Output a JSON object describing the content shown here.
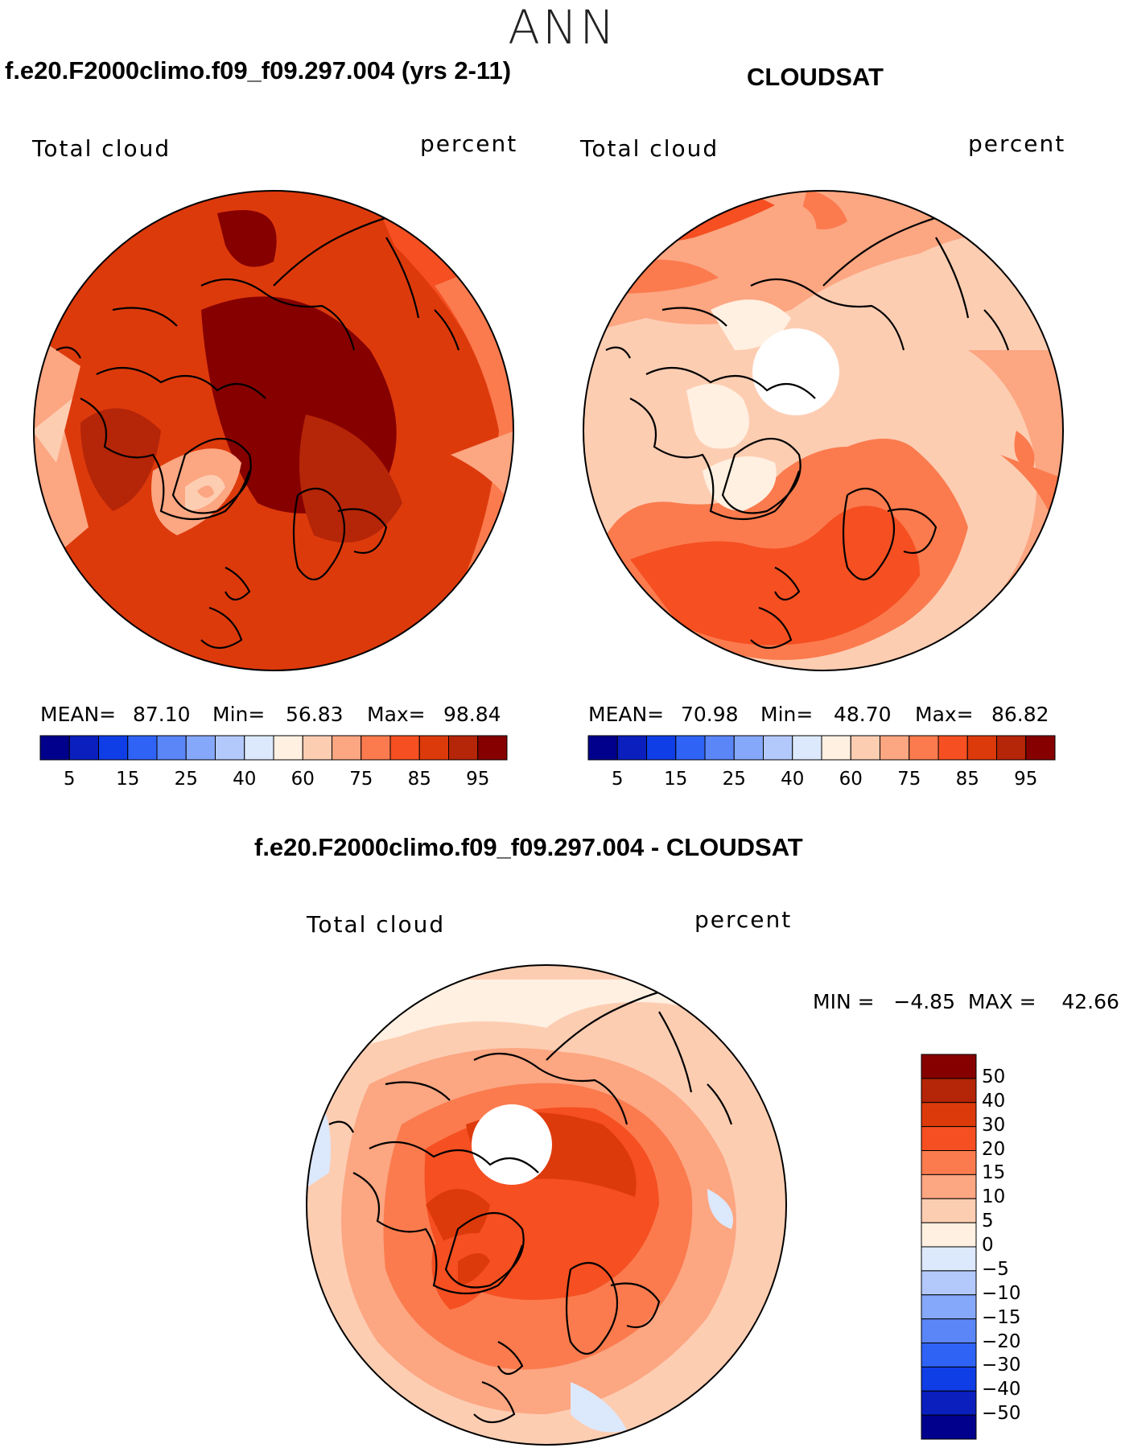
{
  "figure": {
    "season": "ANN"
  },
  "panel_model": {
    "title": "f.e20.F2000climo.f09_f09.297.004 (yrs 2-11)",
    "field_label": "Total cloud",
    "units": "percent",
    "mean_label": "MEAN=",
    "mean_value": "87.10",
    "min_label": "Min=",
    "min_value": "56.83",
    "max_label": "Max=",
    "max_value": "98.84"
  },
  "panel_obs": {
    "title": "CLOUDSAT",
    "field_label": "Total cloud",
    "units": "percent",
    "mean_label": "MEAN=",
    "mean_value": "70.98",
    "min_label": "Min=",
    "min_value": "48.70",
    "max_label": "Max=",
    "max_value": "86.82"
  },
  "panel_diff": {
    "title": "f.e20.F2000climo.f09_f09.297.004 - CLOUDSAT",
    "field_label": "Total cloud",
    "units": "percent",
    "min_max_text": "MIN =   −4.85  MAX =    42.66"
  },
  "colorbar_abs": {
    "colors": [
      "#00008c",
      "#0a1fbe",
      "#0f3ee6",
      "#2f63f5",
      "#5a86f8",
      "#86a8fa",
      "#b3c9fb",
      "#dce8fb",
      "#fff0e1",
      "#fdcdb2",
      "#fca682",
      "#fb7b4e",
      "#f54f22",
      "#dd3a0c",
      "#b52508",
      "#860000"
    ],
    "labels": [
      "5",
      "15",
      "25",
      "40",
      "60",
      "75",
      "85",
      "95"
    ]
  },
  "colorbar_diff": {
    "colors": [
      "#860000",
      "#b52508",
      "#dd3a0c",
      "#f54f22",
      "#fb7b4e",
      "#fca682",
      "#fdcdb2",
      "#fff0e1",
      "#dce8fb",
      "#b3c9fb",
      "#86a8fa",
      "#5a86f8",
      "#2f63f5",
      "#0f3ee6",
      "#0a1fbe",
      "#00008c"
    ],
    "labels": [
      "50",
      "40",
      "30",
      "20",
      "15",
      "10",
      "5",
      "0",
      "−5",
      "−10",
      "−15",
      "−20",
      "−30",
      "−40",
      "−50"
    ]
  }
}
